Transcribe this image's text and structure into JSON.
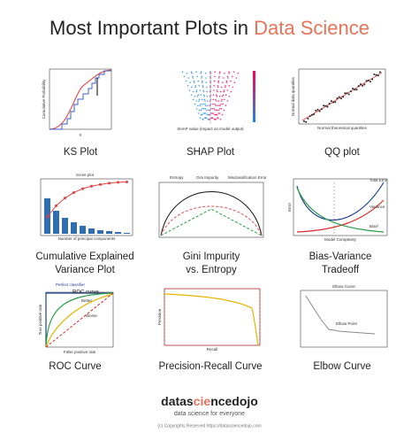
{
  "header": {
    "title": "Most Important Plots in",
    "highlight": "Data Science"
  },
  "panels": [
    {
      "caption": "KS Plot",
      "labels": [
        "Cumulative Probability",
        "X"
      ]
    },
    {
      "caption": "SHAP Plot",
      "labels": [
        "SHAP value (impact on model output)"
      ]
    },
    {
      "caption": "QQ plot",
      "labels": [
        "Normal data quantiles",
        "Normal theoretical quantiles"
      ]
    },
    {
      "caption": "Cumulative Explained Variance Plot",
      "labels": [
        "Scree plot",
        "Number of principal components"
      ]
    },
    {
      "caption": "Gini Impurity vs. Entropy",
      "labels": [
        "Entropy",
        "Gini Impurity",
        "Misclassification Error"
      ]
    },
    {
      "caption": "Bias-Variance Tradeoff",
      "labels": [
        "Total Error",
        "Variance",
        "Bias²",
        "Model Complexity",
        "Error"
      ]
    },
    {
      "caption": "ROC Curve",
      "labels": [
        "ROC curve",
        "Perfect classifier",
        "Better",
        "Worse",
        "True positive rate",
        "False positive rate"
      ]
    },
    {
      "caption": "Precision-Recall Curve",
      "labels": [
        "Precision",
        "Recall"
      ]
    },
    {
      "caption": "Elbow Curve",
      "labels": [
        "Elbow Curve",
        "Elbow Point"
      ]
    }
  ],
  "footer": {
    "brand": [
      "datas",
      "cie",
      "ncedojo"
    ],
    "tagline": "data science for everyone",
    "copyright": "(c) Copyrights Reserved  https://datasciencedojo.com"
  }
}
